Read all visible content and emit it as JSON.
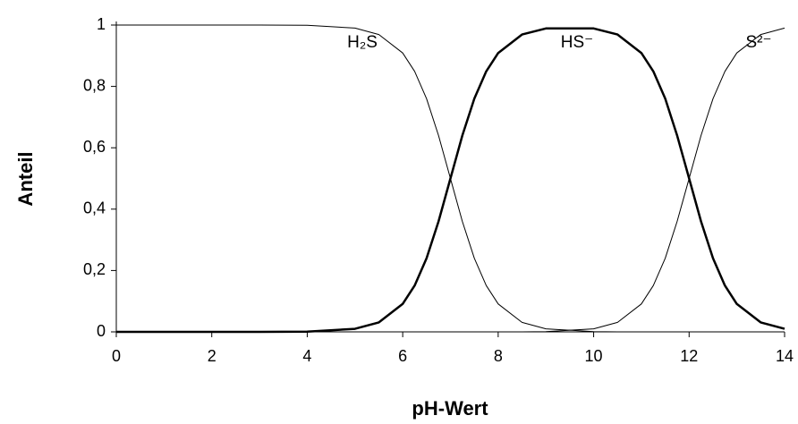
{
  "chart_data": {
    "type": "line",
    "xlabel": "pH-Wert",
    "ylabel": "Anteil",
    "x": [
      0,
      1,
      2,
      3,
      4,
      5,
      5.5,
      6,
      6.25,
      6.5,
      6.75,
      7,
      7.25,
      7.5,
      7.75,
      8,
      8.5,
      9,
      10,
      10.5,
      11,
      11.25,
      11.5,
      11.75,
      12,
      12.25,
      12.5,
      12.75,
      13,
      13.5,
      14
    ],
    "series": [
      {
        "name": "H₂S",
        "color": "#000000",
        "width": 1,
        "values": [
          1,
          1,
          1,
          1,
          0.999,
          0.99,
          0.969,
          0.909,
          0.849,
          0.76,
          0.64,
          0.5,
          0.36,
          0.24,
          0.151,
          0.091,
          0.031,
          0.01,
          0.001,
          0,
          0,
          0,
          0,
          0,
          0,
          0,
          0,
          0,
          0,
          0,
          0
        ]
      },
      {
        "name": "HS⁻",
        "color": "#000000",
        "width": 2.5,
        "values": [
          0,
          0,
          0,
          0,
          0.001,
          0.01,
          0.031,
          0.091,
          0.151,
          0.24,
          0.36,
          0.5,
          0.64,
          0.76,
          0.849,
          0.909,
          0.969,
          0.989,
          0.989,
          0.969,
          0.909,
          0.849,
          0.76,
          0.64,
          0.5,
          0.36,
          0.24,
          0.151,
          0.091,
          0.031,
          0.01
        ]
      },
      {
        "name": "S²⁻",
        "color": "#000000",
        "width": 1,
        "values": [
          0,
          0,
          0,
          0,
          0,
          0,
          0,
          0,
          0,
          0,
          0,
          0,
          0,
          0,
          0,
          0,
          0,
          0.001,
          0.01,
          0.031,
          0.091,
          0.151,
          0.24,
          0.36,
          0.5,
          0.64,
          0.76,
          0.849,
          0.909,
          0.969,
          0.99
        ]
      }
    ],
    "xlim": [
      0,
      14
    ],
    "xticks": [
      0,
      2,
      4,
      6,
      8,
      10,
      12,
      14
    ],
    "ylim": [
      0,
      1
    ],
    "yticks": [
      0,
      {
        "value": 0.2,
        "label": "0,2"
      },
      {
        "value": 0.4,
        "label": "0,4"
      },
      {
        "value": 0.6,
        "label": "0,6"
      },
      {
        "value": 0.8,
        "label": "0,8"
      },
      1
    ],
    "grid": false
  }
}
